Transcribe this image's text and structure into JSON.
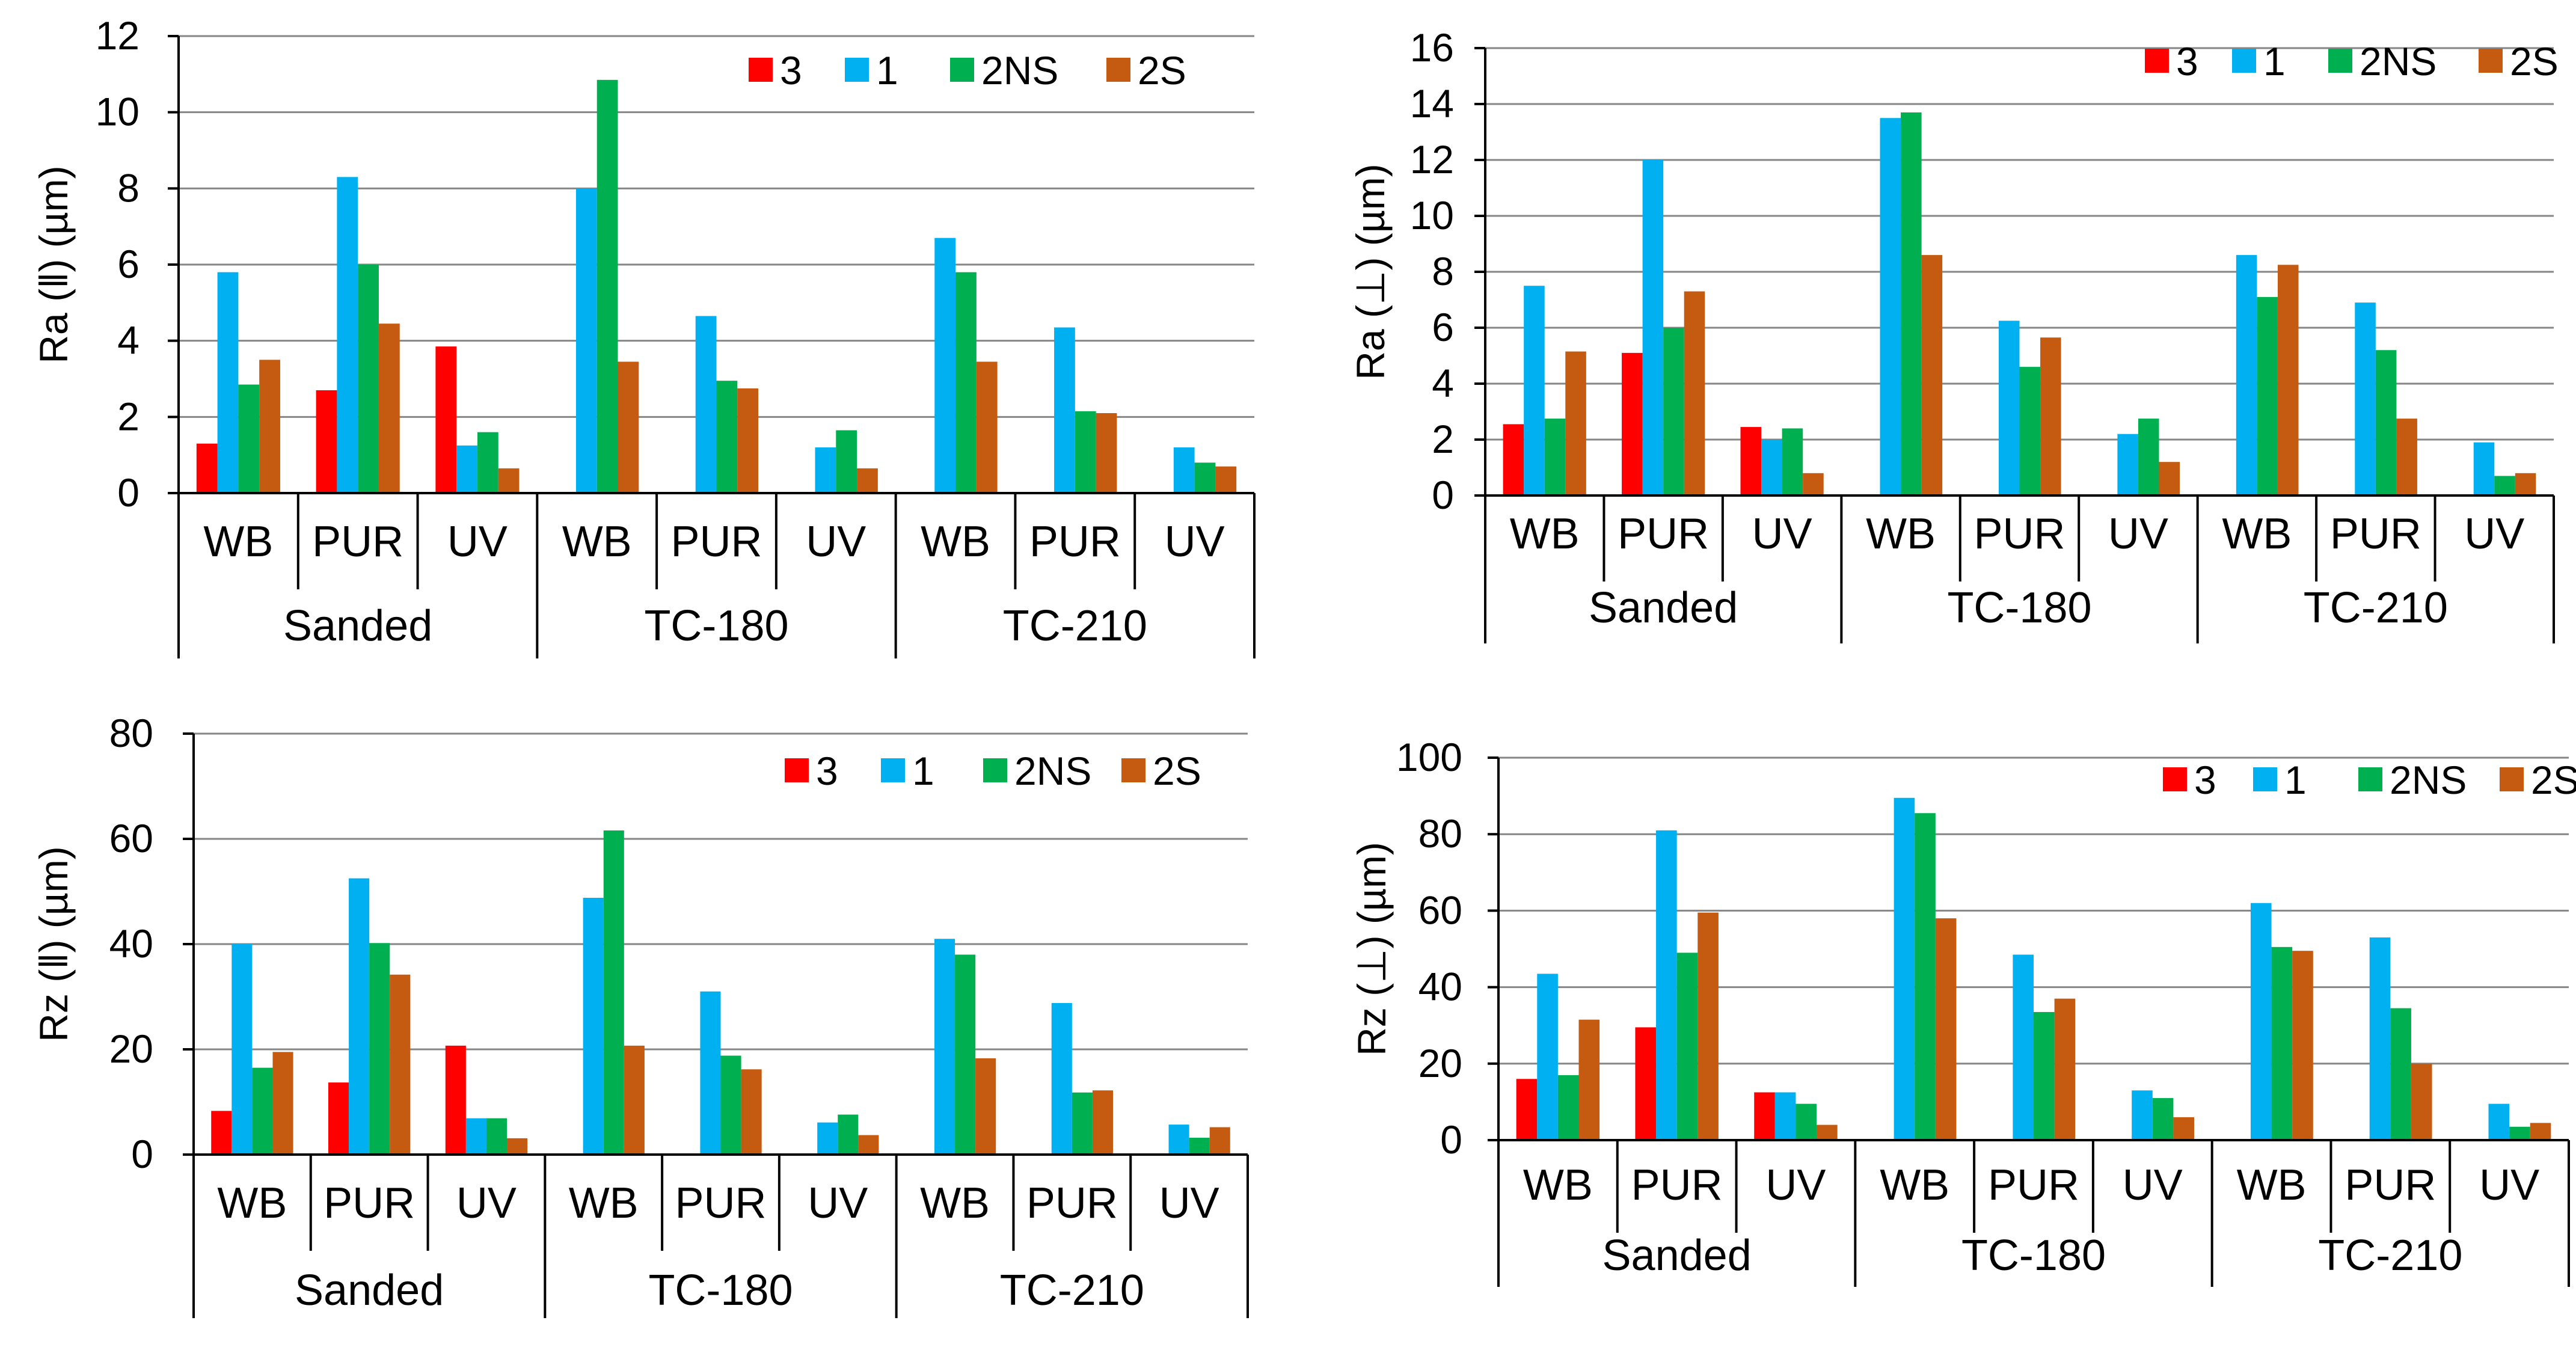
{
  "colors": {
    "s3": "#ff0000",
    "s1": "#00b0f0",
    "s2NS": "#00b050",
    "s2S": "#c55a11"
  },
  "chart_data": [
    {
      "type": "bar",
      "ylabel": "Ra (ǁ) (µm)",
      "ylim": [
        0,
        12
      ],
      "ystep": 2,
      "yticks": [
        "0",
        "2",
        "4",
        "6",
        "8",
        "10",
        "12"
      ],
      "groups": [
        "Sanded",
        "TC-180",
        "TC-210"
      ],
      "categories": [
        "WB",
        "PUR",
        "UV",
        "WB",
        "PUR",
        "UV",
        "WB",
        "PUR",
        "UV"
      ],
      "legend_position": "top-right",
      "series": [
        {
          "name": "3",
          "color": "#ff0000",
          "values": [
            1.3,
            2.7,
            3.85,
            null,
            null,
            null,
            null,
            null,
            null
          ]
        },
        {
          "name": "1",
          "color": "#00b0f0",
          "values": [
            5.8,
            8.3,
            1.25,
            8.0,
            4.65,
            1.2,
            6.7,
            4.35,
            1.2
          ]
        },
        {
          "name": "2NS",
          "color": "#00b050",
          "values": [
            2.85,
            6.0,
            1.6,
            10.85,
            2.95,
            1.65,
            5.8,
            2.15,
            0.8
          ]
        },
        {
          "name": "2S",
          "color": "#c55a11",
          "values": [
            3.5,
            4.45,
            0.65,
            3.45,
            2.75,
            0.65,
            3.45,
            2.1,
            0.7
          ]
        }
      ]
    },
    {
      "type": "bar",
      "ylabel": "Ra (⊥) (µm)",
      "ylim": [
        0,
        16
      ],
      "ystep": 2,
      "yticks": [
        "0",
        "2",
        "4",
        "6",
        "8",
        "10",
        "12",
        "14",
        "16"
      ],
      "groups": [
        "Sanded",
        "TC-180",
        "TC-210"
      ],
      "categories": [
        "WB",
        "PUR",
        "UV",
        "WB",
        "PUR",
        "UV",
        "WB",
        "PUR",
        "UV"
      ],
      "legend_position": "top-right",
      "series": [
        {
          "name": "3",
          "color": "#ff0000",
          "values": [
            2.55,
            5.1,
            2.45,
            null,
            null,
            null,
            null,
            null,
            null
          ]
        },
        {
          "name": "1",
          "color": "#00b0f0",
          "values": [
            7.5,
            12.0,
            2.0,
            13.5,
            6.25,
            2.2,
            8.6,
            6.9,
            1.9
          ]
        },
        {
          "name": "2NS",
          "color": "#00b050",
          "values": [
            2.75,
            6.0,
            2.4,
            13.7,
            4.6,
            2.75,
            7.1,
            5.2,
            0.7
          ]
        },
        {
          "name": "2S",
          "color": "#c55a11",
          "values": [
            5.15,
            7.3,
            0.8,
            8.6,
            5.65,
            1.2,
            8.25,
            2.75,
            0.8
          ]
        }
      ]
    },
    {
      "type": "bar",
      "ylabel": "Rz (ǁ)  (µm)",
      "ylim": [
        0,
        80
      ],
      "ystep": 20,
      "yticks": [
        "0",
        "20",
        "40",
        "60",
        "80"
      ],
      "groups": [
        "Sanded",
        "TC-180",
        "TC-210"
      ],
      "categories": [
        "WB",
        "PUR",
        "UV",
        "WB",
        "PUR",
        "UV",
        "WB",
        "PUR",
        "UV"
      ],
      "legend_position": "top-right",
      "series": [
        {
          "name": "3",
          "color": "#ff0000",
          "values": [
            8.3,
            13.7,
            20.7,
            null,
            null,
            null,
            null,
            null,
            null
          ]
        },
        {
          "name": "1",
          "color": "#00b0f0",
          "values": [
            40.0,
            52.5,
            6.9,
            48.8,
            31.0,
            6.1,
            41.0,
            28.8,
            5.7
          ]
        },
        {
          "name": "2NS",
          "color": "#00b050",
          "values": [
            16.5,
            40.2,
            6.9,
            61.6,
            18.8,
            7.6,
            38.0,
            11.8,
            3.2
          ]
        },
        {
          "name": "2S",
          "color": "#c55a11",
          "values": [
            19.5,
            34.2,
            3.1,
            20.7,
            16.2,
            3.7,
            18.3,
            12.2,
            5.2
          ]
        }
      ]
    },
    {
      "type": "bar",
      "ylabel": "Rz (⊥) (µm)",
      "ylim": [
        0,
        100
      ],
      "ystep": 20,
      "yticks": [
        "0",
        "20",
        "40",
        "60",
        "80",
        "100"
      ],
      "groups": [
        "Sanded",
        "TC-180",
        "TC-210"
      ],
      "categories": [
        "WB",
        "PUR",
        "UV",
        "WB",
        "PUR",
        "UV",
        "WB",
        "PUR",
        "UV"
      ],
      "legend_position": "top-right",
      "series": [
        {
          "name": "3",
          "color": "#ff0000",
          "values": [
            16.0,
            29.5,
            12.5,
            null,
            null,
            null,
            null,
            null,
            null
          ]
        },
        {
          "name": "1",
          "color": "#00b0f0",
          "values": [
            43.5,
            81.0,
            12.5,
            89.5,
            48.5,
            13.0,
            62.0,
            53.0,
            9.5
          ]
        },
        {
          "name": "2NS",
          "color": "#00b050",
          "values": [
            17.0,
            49.0,
            9.5,
            85.5,
            33.5,
            11.0,
            50.5,
            34.5,
            3.5
          ]
        },
        {
          "name": "2S",
          "color": "#c55a11",
          "values": [
            31.5,
            59.5,
            4.0,
            58.0,
            37.0,
            6.0,
            49.5,
            20.0,
            4.5
          ]
        }
      ]
    }
  ]
}
